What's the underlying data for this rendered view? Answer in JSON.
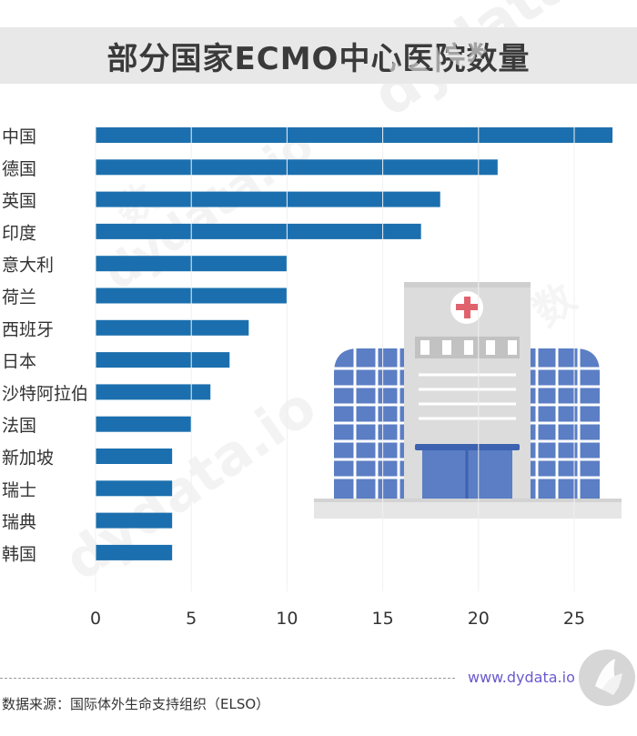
{
  "title": "部分国家ECMO中心医院数量",
  "watermark": "dydata.io",
  "watermark_cn": "数",
  "site_url": "www.dydata.io",
  "source": "数据来源：国际体外生命支持组织（ELSO）",
  "illustration": {
    "icon": "hospital-icon",
    "cross_icon": "medical-cross-icon"
  },
  "colors": {
    "bar": "#1b6fae",
    "axis_text": "#333333",
    "title_bg": "#e8e8e8"
  },
  "chart_data": {
    "type": "bar",
    "orientation": "horizontal",
    "categories": [
      "中国",
      "德国",
      "英国",
      "印度",
      "意大利",
      "荷兰",
      "西班牙",
      "日本",
      "沙特阿拉伯",
      "法国",
      "新加坡",
      "瑞士",
      "瑞典",
      "韩国"
    ],
    "values": [
      27,
      21,
      18,
      17,
      10,
      10,
      8,
      7,
      6,
      5,
      4,
      4,
      4,
      4
    ],
    "title": "部分国家ECMO中心医院数量",
    "xlabel": "",
    "ylabel": "",
    "xlim": [
      0,
      28
    ],
    "xticks": [
      0,
      5,
      10,
      15,
      20,
      25
    ],
    "grid": false,
    "legend": "none"
  }
}
